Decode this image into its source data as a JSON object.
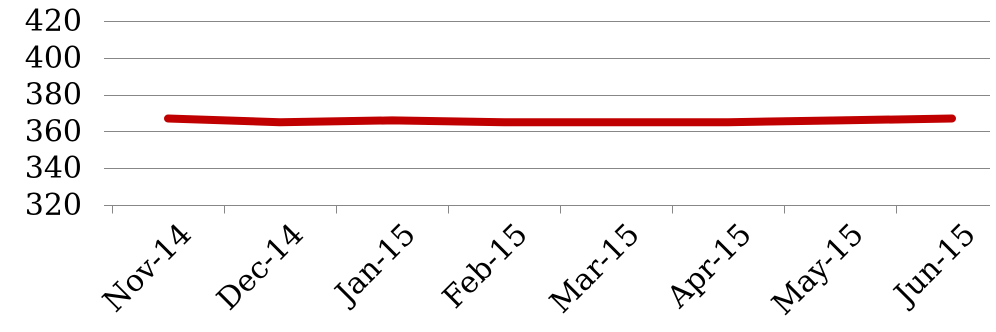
{
  "chart_data": {
    "type": "line",
    "title": "",
    "xlabel": "",
    "ylabel": "",
    "categories": [
      "Nov-14",
      "Dec-14",
      "Jan-15",
      "Feb-15",
      "Mar-15",
      "Apr-15",
      "May-15",
      "Jun-15"
    ],
    "series": [
      {
        "name": "",
        "values": [
          367,
          365,
          366,
          365,
          365,
          365,
          366,
          367
        ],
        "color": "#C00000"
      }
    ],
    "ylim": [
      320,
      420
    ],
    "yticks": [
      320,
      340,
      360,
      380,
      400,
      420
    ],
    "grid": true,
    "legend": "none"
  }
}
